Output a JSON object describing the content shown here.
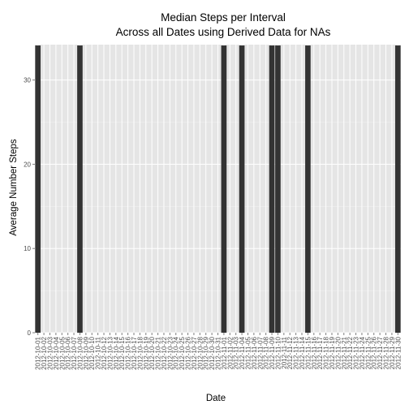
{
  "chart_data": {
    "type": "bar",
    "title": "Median Steps per Interval",
    "subtitle": "Across all Dates using Derived Data for NAs",
    "xlabel": "Date",
    "ylabel": "Average Number Steps",
    "ylim": [
      0,
      34.2
    ],
    "yticks": [
      0,
      10,
      20,
      30
    ],
    "grid": true,
    "legend": "none",
    "colors": {
      "panel": "#e5e5e5",
      "grid": "#ffffff",
      "bar": "#333333"
    },
    "categories": [
      "2012-10-01",
      "2012-10-02",
      "2012-10-03",
      "2012-10-04",
      "2012-10-05",
      "2012-10-06",
      "2012-10-07",
      "2012-10-08",
      "2012-10-09",
      "2012-10-10",
      "2012-10-11",
      "2012-10-12",
      "2012-10-13",
      "2012-10-14",
      "2012-10-15",
      "2012-10-16",
      "2012-10-17",
      "2012-10-18",
      "2012-10-19",
      "2012-10-20",
      "2012-10-21",
      "2012-10-22",
      "2012-10-23",
      "2012-10-24",
      "2012-10-25",
      "2012-10-26",
      "2012-10-27",
      "2012-10-28",
      "2012-10-29",
      "2012-10-30",
      "2012-10-31",
      "2012-11-01",
      "2012-11-02",
      "2012-11-03",
      "2012-11-04",
      "2012-11-05",
      "2012-11-06",
      "2012-11-07",
      "2012-11-08",
      "2012-11-09",
      "2012-11-10",
      "2012-11-11",
      "2012-11-12",
      "2012-11-13",
      "2012-11-14",
      "2012-11-15",
      "2012-11-16",
      "2012-11-17",
      "2012-11-18",
      "2012-11-19",
      "2012-11-20",
      "2012-11-21",
      "2012-11-22",
      "2012-11-23",
      "2012-11-24",
      "2012-11-25",
      "2012-11-26",
      "2012-11-27",
      "2012-11-28",
      "2012-11-29",
      "2012-11-30"
    ],
    "values": [
      34.1,
      0,
      0,
      0,
      0,
      0,
      0,
      34.1,
      0,
      0,
      0,
      0,
      0,
      0,
      0,
      0,
      0,
      0,
      0,
      0,
      0,
      0,
      0,
      0,
      0,
      0,
      0,
      0,
      0,
      0,
      0,
      34.1,
      0,
      0,
      34.1,
      0,
      0,
      0,
      0,
      34.1,
      34.1,
      0,
      0,
      0,
      0,
      34.1,
      0,
      0,
      0,
      0,
      0,
      0,
      0,
      0,
      0,
      0,
      0,
      0,
      0,
      0,
      34.1
    ]
  }
}
